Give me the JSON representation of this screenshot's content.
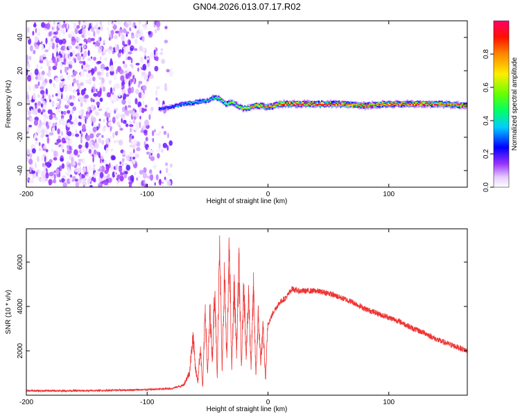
{
  "title": "GN04.2026.013.07.17.R02",
  "chart_data": [
    {
      "type": "heatmap",
      "xlabel": "Height of straight line (km)",
      "ylabel": "Frequency (Hz)",
      "xlim": [
        -200,
        165
      ],
      "ylim": [
        -50,
        50
      ],
      "xticks": [
        -200,
        -100,
        0,
        100
      ],
      "yticks": [
        -40,
        -20,
        0,
        20,
        40
      ],
      "colorbar": {
        "label": "Normalized spectral amplitude",
        "range": [
          0,
          1
        ],
        "ticks": [
          0.0,
          0.2,
          0.4,
          0.6,
          0.8
        ],
        "colors": [
          "#ffffff",
          "#cc99ff",
          "#6600ff",
          "#0000ff",
          "#00ffff",
          "#00ff00",
          "#ffff00",
          "#ff9900",
          "#ff0000",
          "#ff0066"
        ]
      },
      "noise_region_x": [
        -200,
        -80
      ],
      "signal_track": {
        "x": [
          -90,
          -80,
          -70,
          -60,
          -50,
          -45,
          -40,
          -35,
          -30,
          -25,
          -20,
          -15,
          -10,
          -5,
          0,
          10,
          20,
          40,
          60,
          80,
          100,
          120,
          140,
          165
        ],
        "frequency": [
          -3,
          -2,
          0,
          1,
          2,
          4,
          3,
          0,
          1,
          -1,
          -3,
          -2,
          -1,
          -1,
          -2,
          0,
          0,
          0,
          0,
          -1,
          0,
          0,
          0,
          -1
        ],
        "amplitude": [
          0.25,
          0.3,
          0.35,
          0.4,
          0.4,
          0.45,
          0.5,
          0.55,
          0.6,
          0.6,
          0.65,
          0.7,
          0.75,
          0.8,
          0.85,
          0.9,
          0.95,
          0.95,
          0.9,
          0.85,
          0.95,
          0.95,
          0.9,
          0.85
        ]
      }
    },
    {
      "type": "line",
      "xlabel": "Height of straight line (km)",
      "ylabel": "SNR (10 * v/v)",
      "xlim": [
        -200,
        165
      ],
      "ylim": [
        0,
        7500
      ],
      "xticks": [
        -200,
        -100,
        0,
        100
      ],
      "yticks": [
        2000,
        4000,
        6000
      ],
      "series": [
        {
          "name": "SNR",
          "color": "#ee3333",
          "x": [
            -200,
            -150,
            -100,
            -80,
            -70,
            -65,
            -62,
            -60,
            -58,
            -56,
            -54,
            -52,
            -50,
            -48,
            -46,
            -44,
            -42,
            -40,
            -38,
            -36,
            -34,
            -32,
            -30,
            -28,
            -26,
            -24,
            -22,
            -20,
            -18,
            -16,
            -14,
            -12,
            -10,
            -8,
            -6,
            -4,
            -2,
            0,
            5,
            10,
            15,
            20,
            25,
            30,
            40,
            50,
            60,
            70,
            80,
            90,
            100,
            110,
            120,
            130,
            140,
            150,
            160,
            165
          ],
          "y": [
            200,
            200,
            250,
            300,
            450,
            1000,
            2700,
            1200,
            600,
            2200,
            300,
            4000,
            900,
            3800,
            1600,
            5000,
            700,
            7400,
            1000,
            5500,
            1500,
            6800,
            1200,
            4900,
            2000,
            5900,
            1200,
            5000,
            1800,
            4500,
            1300,
            4800,
            900,
            3600,
            1500,
            3000,
            700,
            3200,
            3800,
            4200,
            4400,
            4800,
            4700,
            4700,
            4700,
            4600,
            4400,
            4200,
            3900,
            3700,
            3500,
            3300,
            3000,
            2800,
            2500,
            2300,
            2100,
            2000
          ]
        }
      ]
    }
  ]
}
